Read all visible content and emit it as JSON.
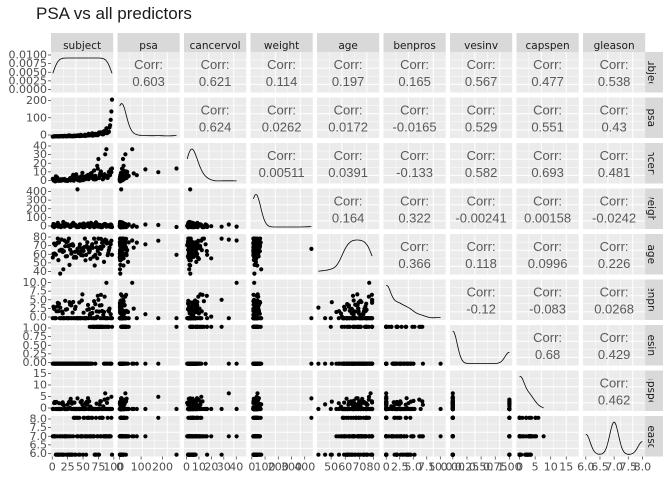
{
  "chart_data": {
    "type": "scatter",
    "title": "PSA vs all predictors",
    "variables": [
      "subject",
      "psa",
      "cancervol",
      "weight",
      "age",
      "benpros",
      "vesinv",
      "capspen",
      "gleason"
    ],
    "row_strip_labels": [
      "subject",
      "psa",
      "cancervol",
      "weight",
      "age",
      "benpros",
      "vesinv",
      "capspen",
      "gleason"
    ],
    "corr_label": "Corr:",
    "correlations": [
      {
        "row": "subject",
        "col": "psa",
        "value": "0.603"
      },
      {
        "row": "subject",
        "col": "cancervol",
        "value": "0.621"
      },
      {
        "row": "subject",
        "col": "weight",
        "value": "0.114"
      },
      {
        "row": "subject",
        "col": "age",
        "value": "0.197"
      },
      {
        "row": "subject",
        "col": "benpros",
        "value": "0.165"
      },
      {
        "row": "subject",
        "col": "vesinv",
        "value": "0.567"
      },
      {
        "row": "subject",
        "col": "capspen",
        "value": "0.477"
      },
      {
        "row": "subject",
        "col": "gleason",
        "value": "0.538"
      },
      {
        "row": "psa",
        "col": "cancervol",
        "value": "0.624"
      },
      {
        "row": "psa",
        "col": "weight",
        "value": "0.0262"
      },
      {
        "row": "psa",
        "col": "age",
        "value": "0.0172"
      },
      {
        "row": "psa",
        "col": "benpros",
        "value": "-0.0165"
      },
      {
        "row": "psa",
        "col": "vesinv",
        "value": "0.529"
      },
      {
        "row": "psa",
        "col": "capspen",
        "value": "0.551"
      },
      {
        "row": "psa",
        "col": "gleason",
        "value": "0.43"
      },
      {
        "row": "cancervol",
        "col": "weight",
        "value": "0.00511"
      },
      {
        "row": "cancervol",
        "col": "age",
        "value": "0.0391"
      },
      {
        "row": "cancervol",
        "col": "benpros",
        "value": "-0.133"
      },
      {
        "row": "cancervol",
        "col": "vesinv",
        "value": "0.582"
      },
      {
        "row": "cancervol",
        "col": "capspen",
        "value": "0.693"
      },
      {
        "row": "cancervol",
        "col": "gleason",
        "value": "0.481"
      },
      {
        "row": "weight",
        "col": "age",
        "value": "0.164"
      },
      {
        "row": "weight",
        "col": "benpros",
        "value": "0.322"
      },
      {
        "row": "weight",
        "col": "vesinv",
        "value": "-0.00241"
      },
      {
        "row": "weight",
        "col": "capspen",
        "value": "0.00158"
      },
      {
        "row": "weight",
        "col": "gleason",
        "value": "-0.0242"
      },
      {
        "row": "age",
        "col": "benpros",
        "value": "0.366"
      },
      {
        "row": "age",
        "col": "vesinv",
        "value": "0.118"
      },
      {
        "row": "age",
        "col": "capspen",
        "value": "0.0996"
      },
      {
        "row": "age",
        "col": "gleason",
        "value": "0.226"
      },
      {
        "row": "benpros",
        "col": "vesinv",
        "value": "-0.12"
      },
      {
        "row": "benpros",
        "col": "capspen",
        "value": "-0.083"
      },
      {
        "row": "benpros",
        "col": "gleason",
        "value": "0.0268"
      },
      {
        "row": "vesinv",
        "col": "capspen",
        "value": "0.68"
      },
      {
        "row": "vesinv",
        "col": "gleason",
        "value": "0.429"
      },
      {
        "row": "capspen",
        "col": "gleason",
        "value": "0.462"
      }
    ],
    "x_tick_labels": {
      "subject": [
        "0",
        "25",
        "50",
        "75",
        "100"
      ],
      "psa": [
        "0",
        "100",
        "200"
      ],
      "cancervol": [
        "0",
        "10",
        "20",
        "30",
        "40"
      ],
      "weight": [
        "0",
        "100",
        "200",
        "300",
        "400"
      ],
      "age": [
        "50",
        "60",
        "70",
        "80"
      ],
      "benpros": [
        "0",
        "2.5",
        "5.0",
        "7.5",
        "10.0"
      ],
      "vesinv": [
        "0.00",
        "0.25",
        "0.50",
        "0.75",
        "1.00"
      ],
      "capspen": [
        "0",
        "5",
        "10",
        "15"
      ],
      "gleason": [
        "6.0",
        "6.5",
        "7.0",
        "7.5",
        "8.0"
      ]
    },
    "y_tick_labels": {
      "subject": [
        "0.0100",
        "0.0075",
        "0.0050",
        "0.0025",
        "0.0000"
      ],
      "psa": [
        "200",
        "100",
        "0"
      ],
      "cancervol": [
        "40",
        "30",
        "20",
        "10",
        "0"
      ],
      "weight": [
        "400",
        "300",
        "200",
        "100",
        "0"
      ],
      "age": [
        "80",
        "70",
        "60",
        "50",
        "40"
      ],
      "benpros": [
        "10.0",
        "7.5",
        "5.0",
        "2.5",
        "0.0"
      ],
      "vesinv": [
        "1.00",
        "0.75",
        "0.50",
        "0.25",
        "0.00"
      ],
      "capspen": [
        "15",
        "10",
        "5",
        "0"
      ],
      "gleason": [
        "8.0",
        "7.5",
        "7.0",
        "6.5",
        "6.0"
      ]
    },
    "ranges": {
      "subject": [
        -2,
        99
      ],
      "psa": [
        -10,
        280
      ],
      "cancervol": [
        -2,
        48
      ],
      "weight": [
        -10,
        460
      ],
      "age": [
        40,
        84
      ],
      "benpros": [
        -0.5,
        11
      ],
      "vesinv": [
        -0.05,
        1.05
      ],
      "capspen": [
        -1,
        19
      ],
      "gleason": [
        5.9,
        8.1
      ]
    },
    "grid": true,
    "panel_background": "#ebebeb",
    "strip_background": "#d9d9d9",
    "point_color": "#000000"
  }
}
